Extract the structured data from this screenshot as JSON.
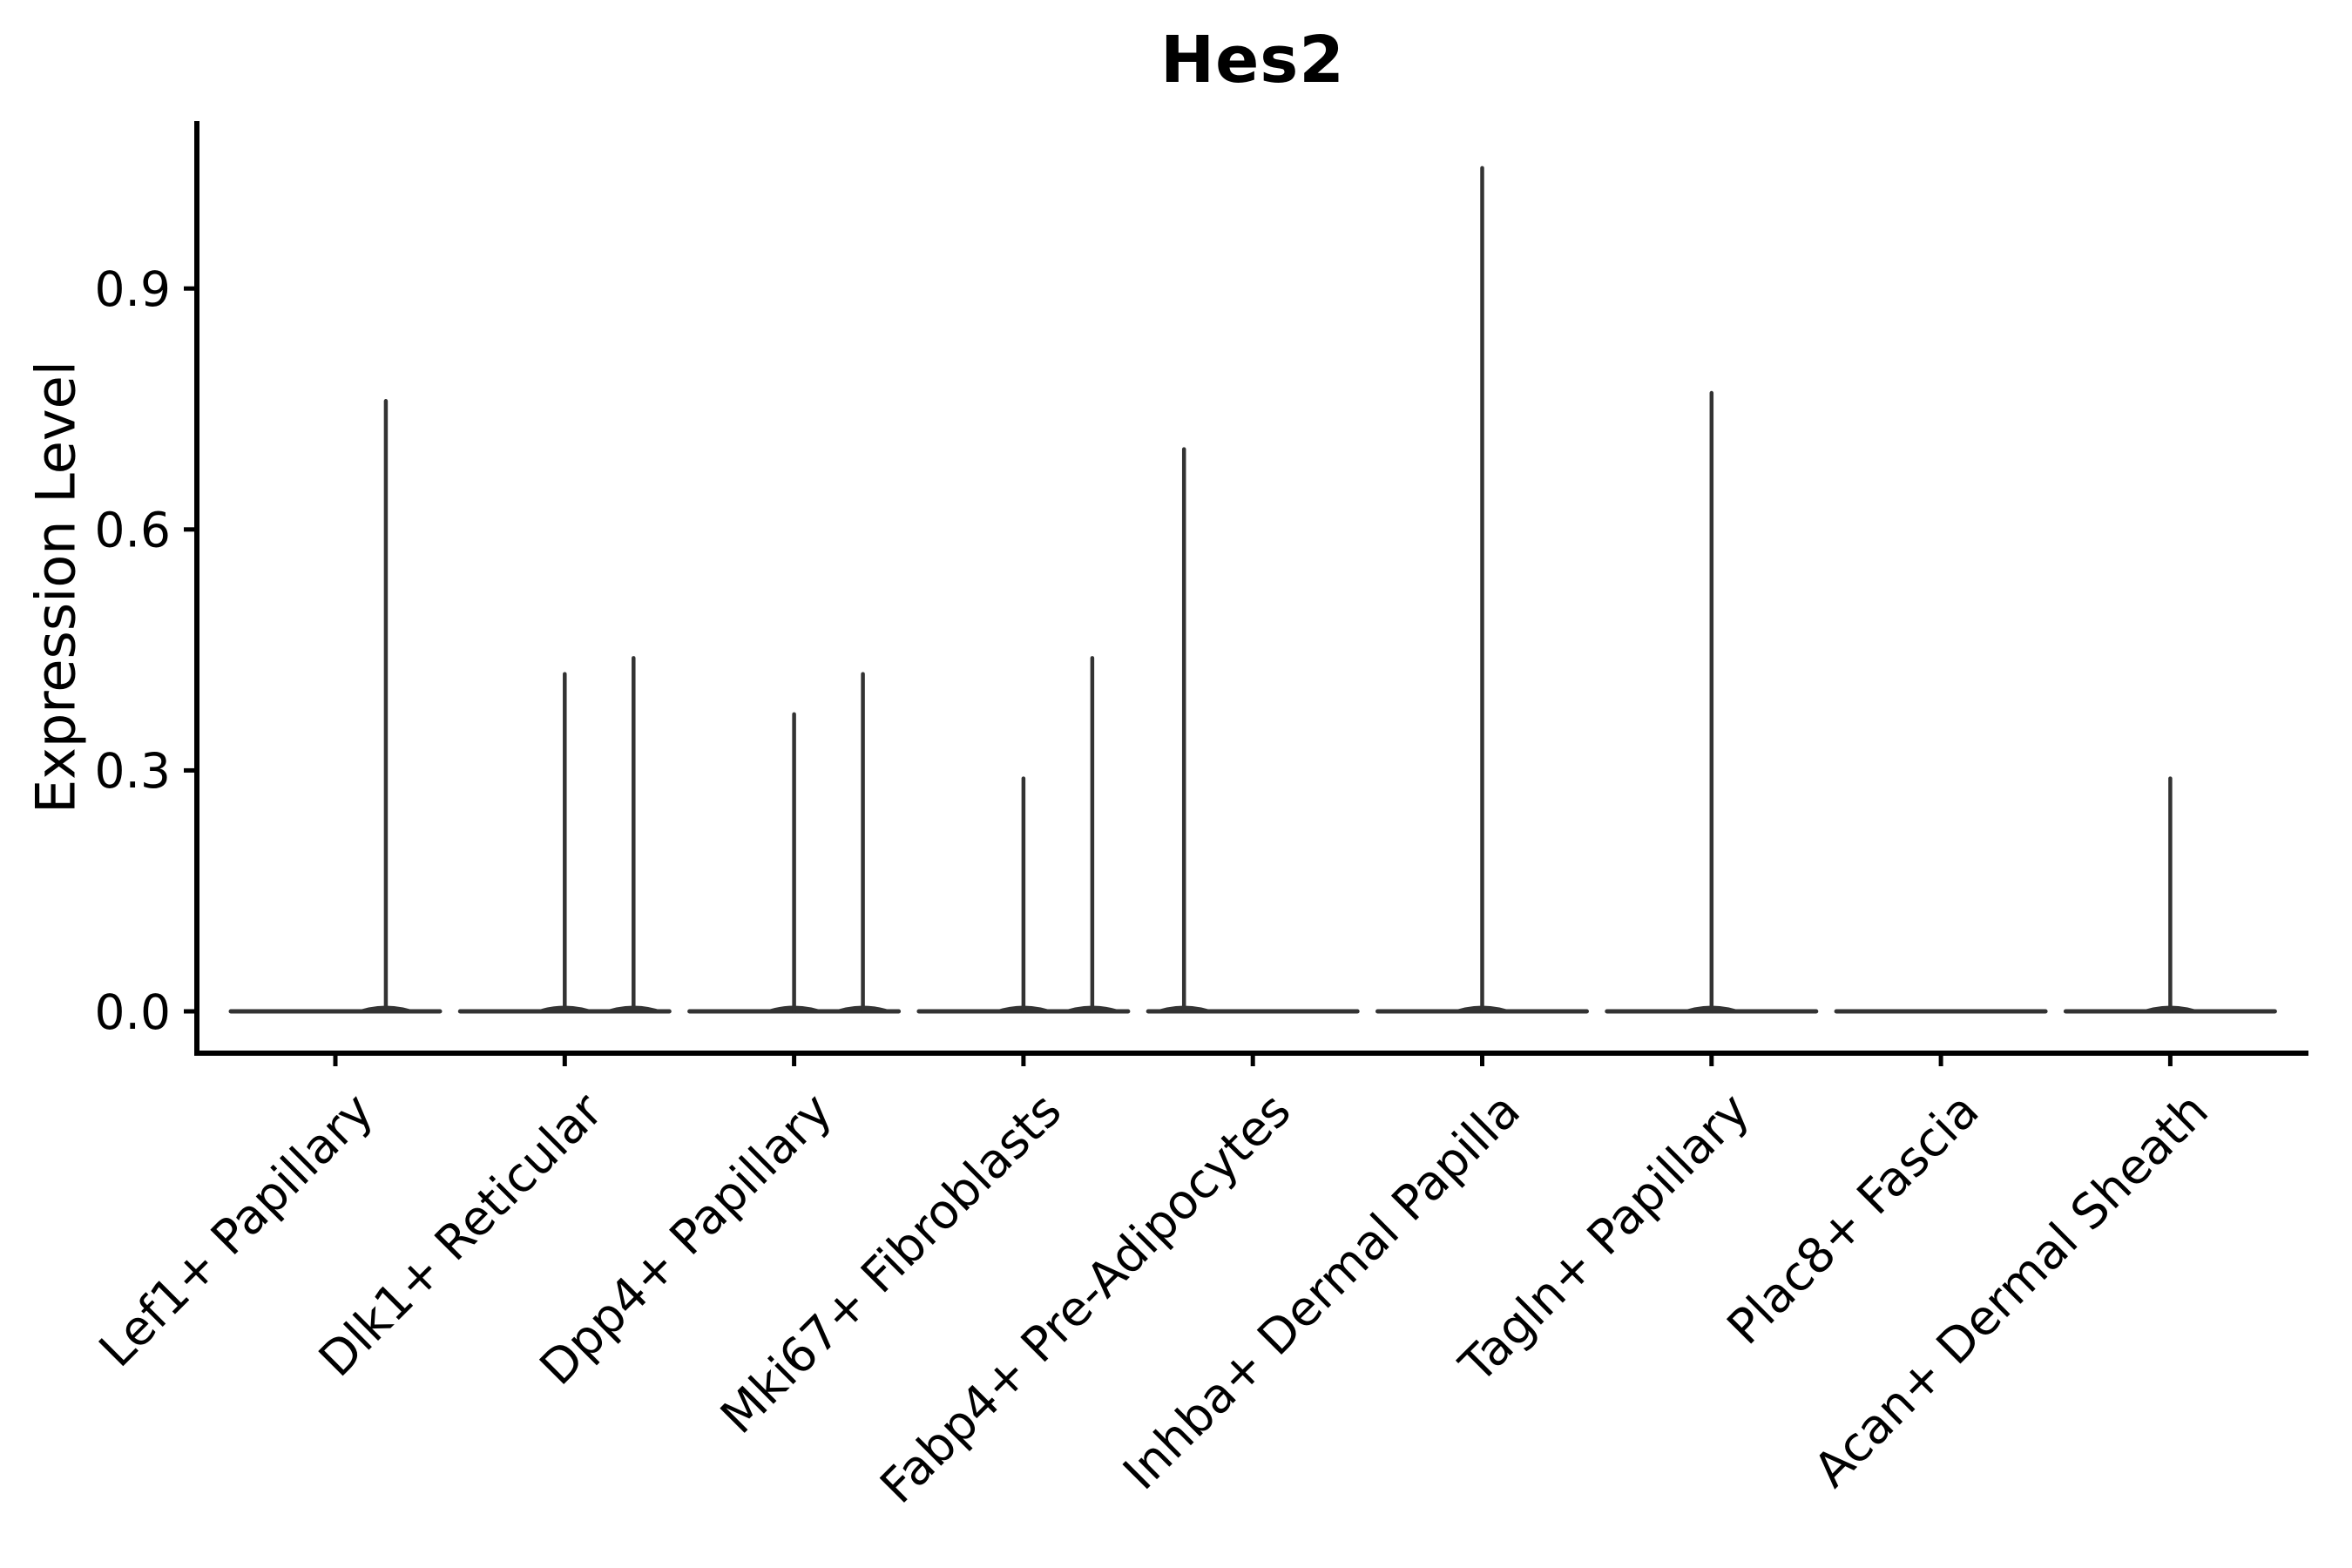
{
  "title": "Hes2",
  "chart_data": {
    "type": "violin",
    "title": "Hes2",
    "ylabel": "Expression Level",
    "xlabel": "",
    "y_ticks": [
      "0.0",
      "0.3",
      "0.6",
      "0.9"
    ],
    "ylim": [
      -0.05,
      1.11
    ],
    "grid": false,
    "legend_position": "none",
    "categories": [
      "Lef1+ Papillary",
      "Dlk1+ Reticular",
      "Dpp4+ Papillary",
      "Mki67+ Fibroblasts",
      "Fabp4+ Pre-Adipocytes",
      "Inhba+ Dermal Papilla",
      "Tagln+ Papillary",
      "Plac8+ Fascia",
      "Acan+ Dermal Sheath"
    ],
    "violins": [
      {
        "category": "Lef1+ Papillary",
        "baseline": 0.0,
        "spikes": [
          {
            "dx": 0.22,
            "value": 0.76
          }
        ]
      },
      {
        "category": "Dlk1+ Reticular",
        "baseline": 0.0,
        "spikes": [
          {
            "dx": 0.0,
            "value": 0.42
          },
          {
            "dx": 0.3,
            "value": 0.44
          }
        ]
      },
      {
        "category": "Dpp4+ Papillary",
        "baseline": 0.0,
        "spikes": [
          {
            "dx": 0.0,
            "value": 0.37
          },
          {
            "dx": 0.3,
            "value": 0.42
          }
        ]
      },
      {
        "category": "Mki67+ Fibroblasts",
        "baseline": 0.0,
        "spikes": [
          {
            "dx": 0.0,
            "value": 0.29
          },
          {
            "dx": 0.3,
            "value": 0.44
          }
        ]
      },
      {
        "category": "Fabp4+ Pre-Adipocytes",
        "baseline": 0.0,
        "spikes": [
          {
            "dx": -0.3,
            "value": 0.7
          }
        ]
      },
      {
        "category": "Inhba+ Dermal Papilla",
        "baseline": 0.0,
        "spikes": [
          {
            "dx": 0.0,
            "value": 1.05
          }
        ]
      },
      {
        "category": "Tagln+ Papillary",
        "baseline": 0.0,
        "spikes": [
          {
            "dx": 0.0,
            "value": 0.77
          }
        ]
      },
      {
        "category": "Plac8+ Fascia",
        "baseline": 0.0,
        "spikes": []
      },
      {
        "category": "Acan+ Dermal Sheath",
        "baseline": 0.0,
        "spikes": [
          {
            "dx": 0.0,
            "value": 0.29
          }
        ]
      }
    ],
    "colors": {
      "violin": "#333333",
      "axis": "#000000",
      "text": "#000000",
      "background": "#ffffff"
    }
  }
}
